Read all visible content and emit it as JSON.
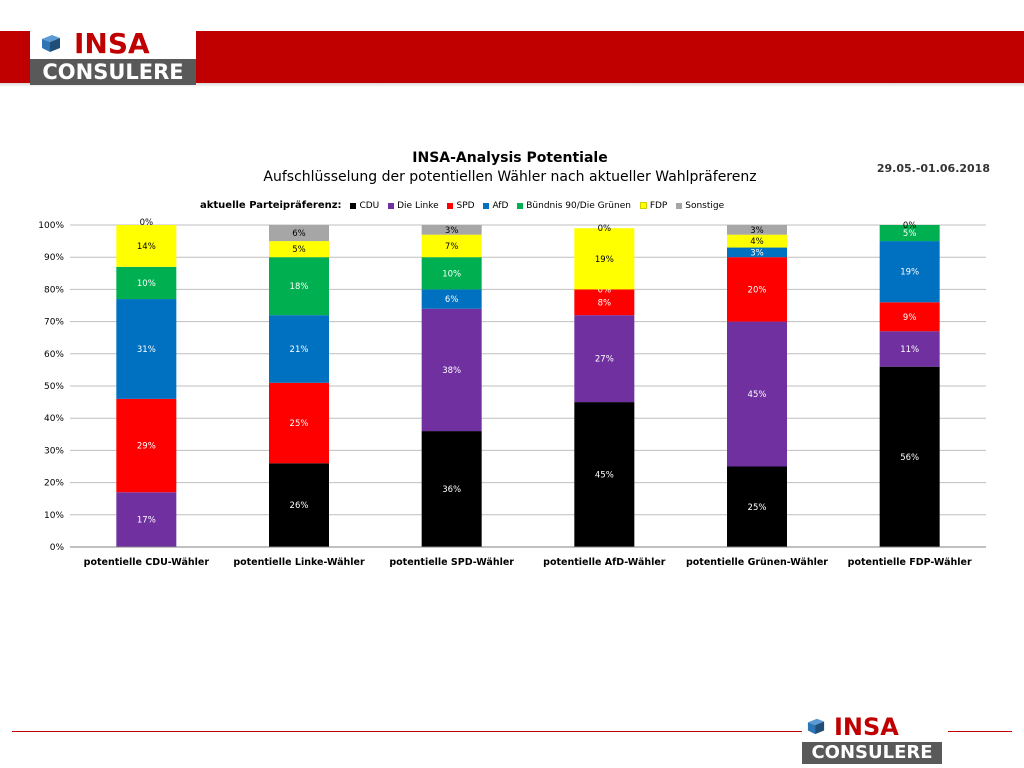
{
  "header": {
    "brand_top": "INSA",
    "brand_bottom": "CONSULERE",
    "color": "#c00000"
  },
  "footer": {
    "brand_top": "INSA",
    "brand_bottom": "CONSULERE"
  },
  "date": "29.05.-01.06.2018",
  "chart_data": {
    "type": "bar",
    "stacked": true,
    "title": "INSA-Analysis Potentiale",
    "subtitle": "Aufschlüsselung der potentiellen Wähler nach aktueller Wahlpräferenz",
    "legend_title": "aktuelle Parteipräferenz:",
    "legend_position": "top",
    "grid": true,
    "ylim": [
      0,
      100
    ],
    "yticks": [
      "0%",
      "10%",
      "20%",
      "30%",
      "40%",
      "50%",
      "60%",
      "70%",
      "80%",
      "90%",
      "100%"
    ],
    "categories": [
      "potentielle CDU-Wähler",
      "potentielle Linke-Wähler",
      "potentielle SPD-Wähler",
      "potentielle AfD-Wähler",
      "potentielle Grünen-Wähler",
      "potentielle FDP-Wähler"
    ],
    "series": [
      {
        "name": "CDU",
        "color": "#000000",
        "values": [
          null,
          26,
          36,
          45,
          25,
          56
        ],
        "labels": [
          "",
          "26%",
          "36%",
          "45%",
          "25%",
          "56%"
        ]
      },
      {
        "name": "Die Linke",
        "color": "#7030a0",
        "values": [
          17,
          null,
          38,
          27,
          45,
          11
        ],
        "labels": [
          "17%",
          "",
          "38%",
          "27%",
          "45%",
          "11%"
        ]
      },
      {
        "name": "SPD",
        "color": "#ff0000",
        "values": [
          29,
          25,
          null,
          8,
          20,
          9
        ],
        "labels": [
          "29%",
          "25%",
          "",
          "8%",
          "20%",
          "9%"
        ]
      },
      {
        "name": "AfD",
        "color": "#0070c0",
        "values": [
          31,
          21,
          6,
          null,
          3,
          19
        ],
        "labels": [
          "31%",
          "21%",
          "6%",
          "",
          "3%",
          "19%"
        ]
      },
      {
        "name": "Bündnis 90/Die Grünen",
        "color": "#00b050",
        "values": [
          10,
          18,
          10,
          0,
          null,
          5
        ],
        "labels": [
          "10%",
          "18%",
          "10%",
          "0%",
          "",
          "5%"
        ]
      },
      {
        "name": "FDP",
        "color": "#ffff00",
        "values": [
          14,
          5,
          7,
          19,
          4,
          null
        ],
        "labels": [
          "14%",
          "5%",
          "7%",
          "19%",
          "4%",
          ""
        ]
      },
      {
        "name": "Sonstige",
        "color": "#a6a6a6",
        "values": [
          0,
          6,
          3,
          0,
          3,
          0
        ],
        "labels": [
          "0%",
          "6%",
          "3%",
          "0%",
          "3%",
          "0%"
        ]
      }
    ]
  }
}
